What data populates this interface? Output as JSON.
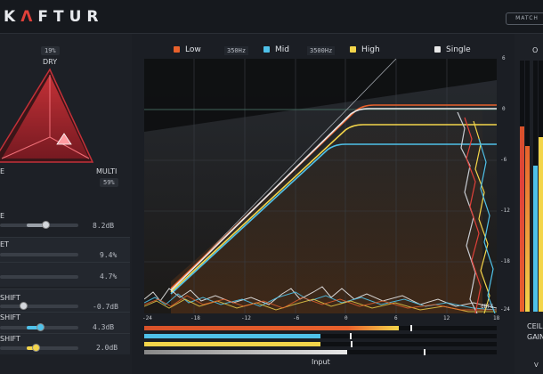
{
  "header": {
    "logo_left": "K",
    "logo_a": "Λ",
    "logo_right": "FTUR",
    "match_label": "MATCH"
  },
  "triangle": {
    "top_pct": "19%",
    "top_label": "DRY",
    "left_label": "E",
    "right_label": "MULTI",
    "right_pct": "59%"
  },
  "controls": [
    {
      "label": "E",
      "value": "8.2dB",
      "level": 0.35
    },
    {
      "label": "ET",
      "value": "9.4%",
      "level": 0.0
    },
    {
      "label": "",
      "value": "4.7%",
      "level": 0.0
    },
    {
      "label": "SHIFT",
      "value": "-0.7dB",
      "level": 0.15
    },
    {
      "label": "SHIFT",
      "value": "4.3dB",
      "level": 0.3
    },
    {
      "label": "SHIFT",
      "value": "2.0dB",
      "level": 0.25
    }
  ],
  "legend": {
    "low": "Low",
    "mid": "Mid",
    "high": "High",
    "single": "Single",
    "hz1": "350Hz",
    "hz2": "3500Hz"
  },
  "colors": {
    "low": "#e8612c",
    "mid": "#4fc1e9",
    "high": "#f3d54a",
    "single": "#e8e8e8",
    "accent": "#e0413a"
  },
  "graph": {
    "x_ticks": [
      "-24",
      "-18",
      "-12",
      "-6",
      "0",
      "6",
      "12",
      "18"
    ],
    "y_ticks": [
      "6",
      "0",
      "-6",
      "-12",
      "-18",
      "-24"
    ],
    "dbfs": "dBFS",
    "xlabel": "Input"
  },
  "right": {
    "header": "O",
    "ceil": "CEIL",
    "gain": "GAIN",
    "corner": "V"
  }
}
